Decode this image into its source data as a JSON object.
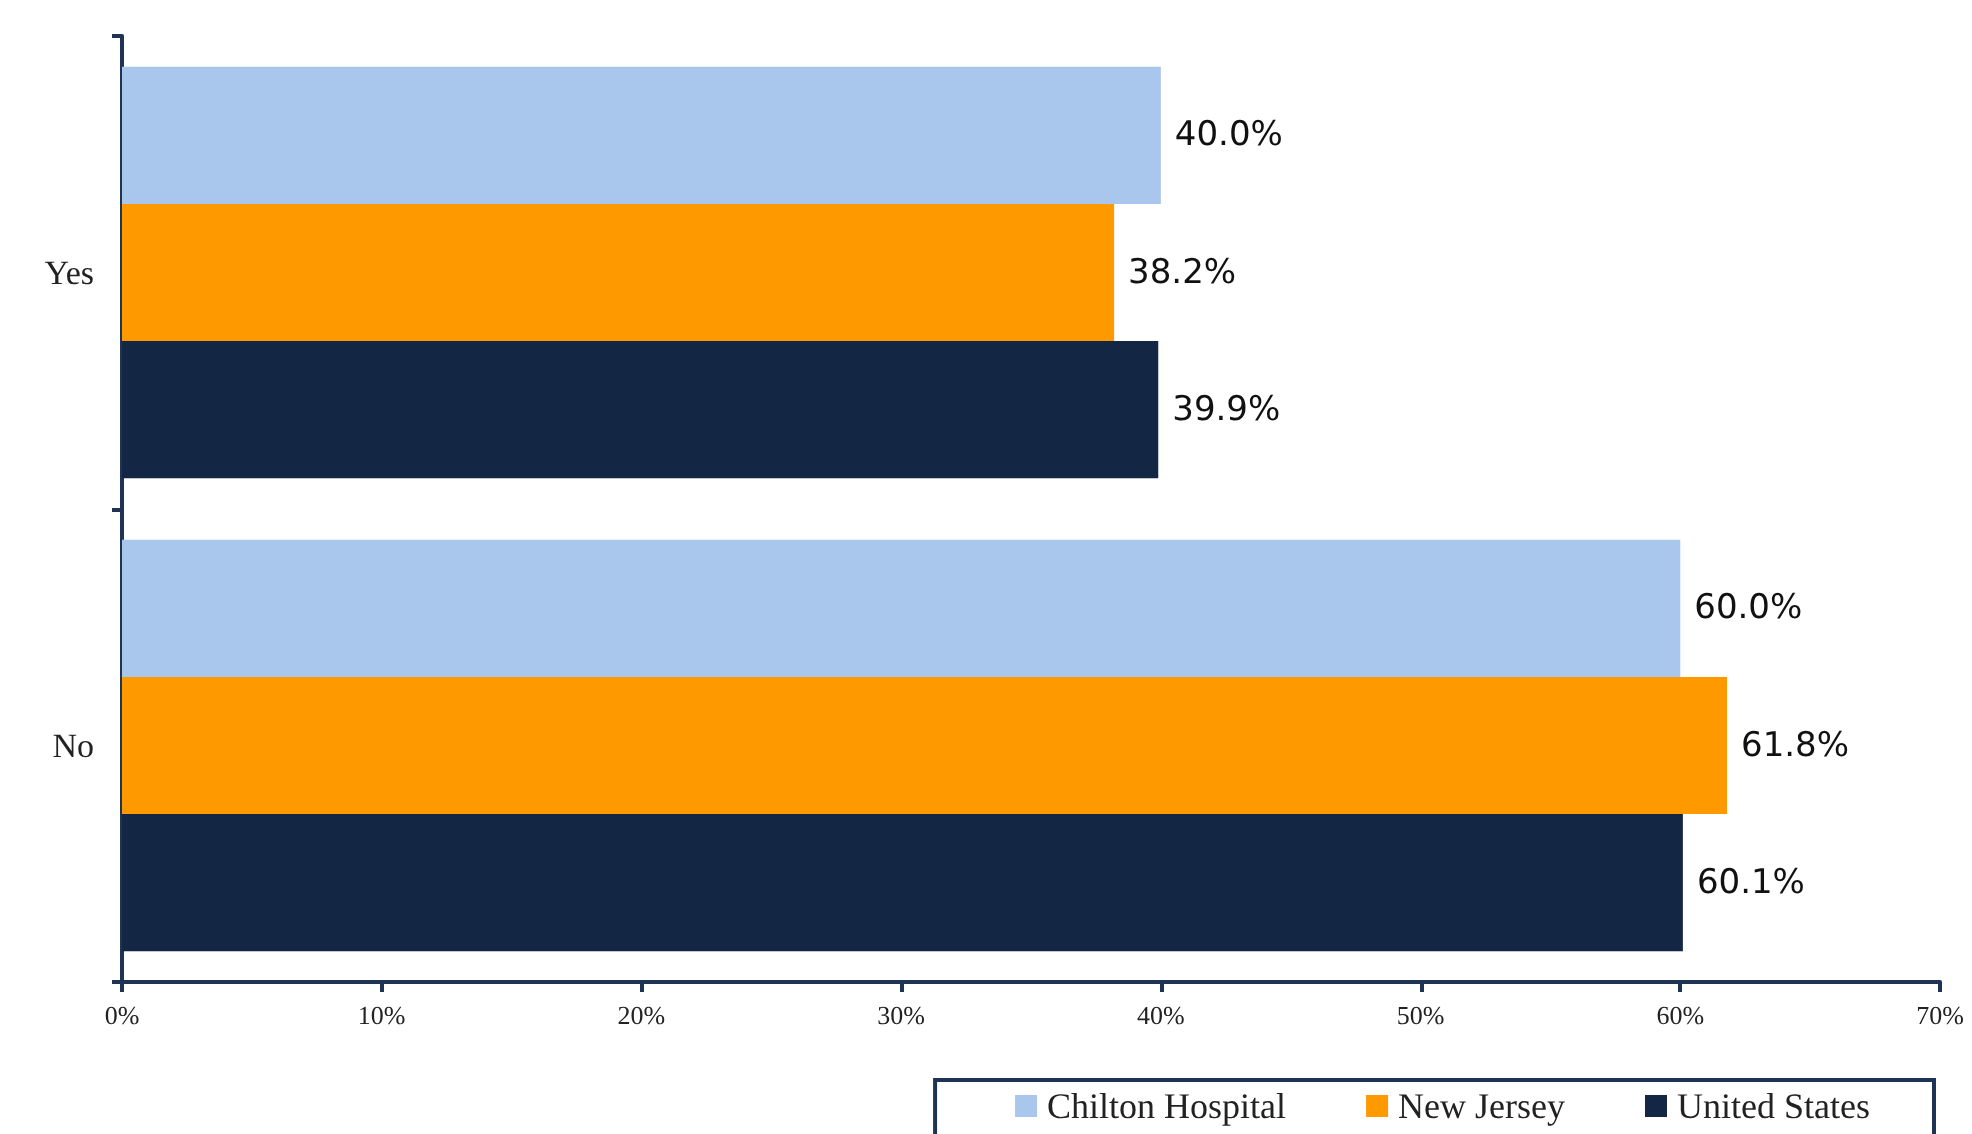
{
  "chart_data": {
    "type": "bar",
    "orientation": "horizontal",
    "categories": [
      "Yes",
      "No"
    ],
    "series": [
      {
        "name": "Chilton Hospital",
        "color": "#a9c6ec",
        "values": [
          40.0,
          60.0
        ],
        "value_labels": [
          "40.0%",
          "60.0%"
        ]
      },
      {
        "name": "New Jersey",
        "color": "#ff9900",
        "values": [
          38.2,
          61.8
        ],
        "value_labels": [
          "38.2%",
          "61.8%"
        ]
      },
      {
        "name": "United States",
        "color": "#132745",
        "values": [
          39.9,
          60.1
        ],
        "value_labels": [
          "39.9%",
          "60.1%"
        ]
      }
    ],
    "xlim": [
      0,
      70
    ],
    "xticks": [
      {
        "value": 0,
        "label": "0%"
      },
      {
        "value": 10,
        "label": "10%"
      },
      {
        "value": 20,
        "label": "20%"
      },
      {
        "value": 30,
        "label": "30%"
      },
      {
        "value": 40,
        "label": "40%"
      },
      {
        "value": 50,
        "label": "50%"
      },
      {
        "value": 60,
        "label": "60%"
      },
      {
        "value": 70,
        "label": "70%"
      }
    ],
    "legend": "bottom right"
  }
}
